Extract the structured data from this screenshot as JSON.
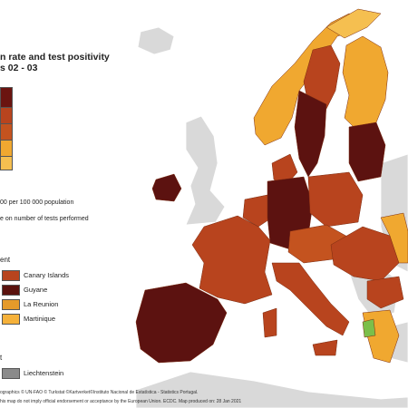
{
  "title": {
    "line1": "n rate and test positivity",
    "line2": "s 02 - 03"
  },
  "main_legend": {
    "colors": [
      "#6b1410",
      "#b8441e",
      "#c4531f",
      "#f0a830",
      "#f5bf50"
    ]
  },
  "notes": {
    "rate_note": "00 per 100 000 population",
    "tests_note": "e on number of tests performed"
  },
  "outermost": {
    "section_label": "ent",
    "items": [
      {
        "label": "Canary Islands",
        "color": "#b8441e"
      },
      {
        "label": "Guyane",
        "color": "#5a120e"
      },
      {
        "label": "La Reunion",
        "color": "#e59a2a"
      },
      {
        "label": "Martinique",
        "color": "#f5b13a"
      }
    ]
  },
  "other": {
    "section_label": "t",
    "items": [
      {
        "label": "Liechtenstein",
        "color": "#8a8a8a"
      }
    ]
  },
  "footer": {
    "line1": "ographics © UN-FAO © Turkstat ©Kartverket©Instituto Nacional de Estatística - Statistics Portugal.",
    "line2": "his map do not imply official endorsement or acceptance by the European Union. ECDC. Map produced on: 28 Jan 2021"
  },
  "colors": {
    "dark_red": "#5c1210",
    "red": "#b8441e",
    "red_orange": "#c4531f",
    "orange": "#f0a830",
    "light_orange": "#f5bf50",
    "green": "#7bbf4a",
    "no_data": "#d9d9d9",
    "not_included": "#8a8a8a"
  }
}
